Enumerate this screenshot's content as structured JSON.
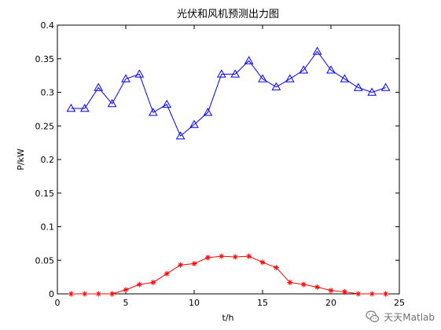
{
  "chart_data": {
    "type": "line",
    "title": "光伏和风机预测出力图",
    "xlabel": "t/h",
    "ylabel": "P/kW",
    "xlim": [
      0,
      25
    ],
    "ylim": [
      0,
      0.4
    ],
    "x_ticks": [
      "0",
      "5",
      "10",
      "15",
      "20",
      "25"
    ],
    "y_ticks": [
      "0",
      "0.05",
      "0.1",
      "0.15",
      "0.2",
      "0.25",
      "0.3",
      "0.35",
      "0.4"
    ],
    "x_tick_values": [
      0,
      5,
      10,
      15,
      20,
      25
    ],
    "y_tick_values": [
      0,
      0.05,
      0.1,
      0.15,
      0.2,
      0.25,
      0.3,
      0.35,
      0.4
    ],
    "grid": false,
    "x": [
      1,
      2,
      3,
      4,
      5,
      6,
      7,
      8,
      9,
      10,
      11,
      12,
      13,
      14,
      15,
      16,
      17,
      18,
      19,
      20,
      21,
      22,
      23,
      24
    ],
    "series": [
      {
        "color": "#0000ff",
        "marker": "triangle",
        "values": [
          0.276,
          0.276,
          0.307,
          0.283,
          0.32,
          0.327,
          0.27,
          0.282,
          0.235,
          0.252,
          0.27,
          0.327,
          0.327,
          0.347,
          0.32,
          0.308,
          0.32,
          0.333,
          0.361,
          0.333,
          0.32,
          0.307,
          0.3,
          0.307
        ]
      },
      {
        "color": "#ff0000",
        "marker": "star",
        "values": [
          0.0,
          0.0,
          0.0,
          0.0,
          0.006,
          0.014,
          0.017,
          0.03,
          0.043,
          0.045,
          0.054,
          0.056,
          0.055,
          0.056,
          0.047,
          0.039,
          0.017,
          0.014,
          0.01,
          0.005,
          0.003,
          0.0,
          0.0,
          0.0
        ]
      }
    ]
  },
  "watermark": {
    "text": "天天Matlab",
    "icon": "wechat-icon"
  }
}
